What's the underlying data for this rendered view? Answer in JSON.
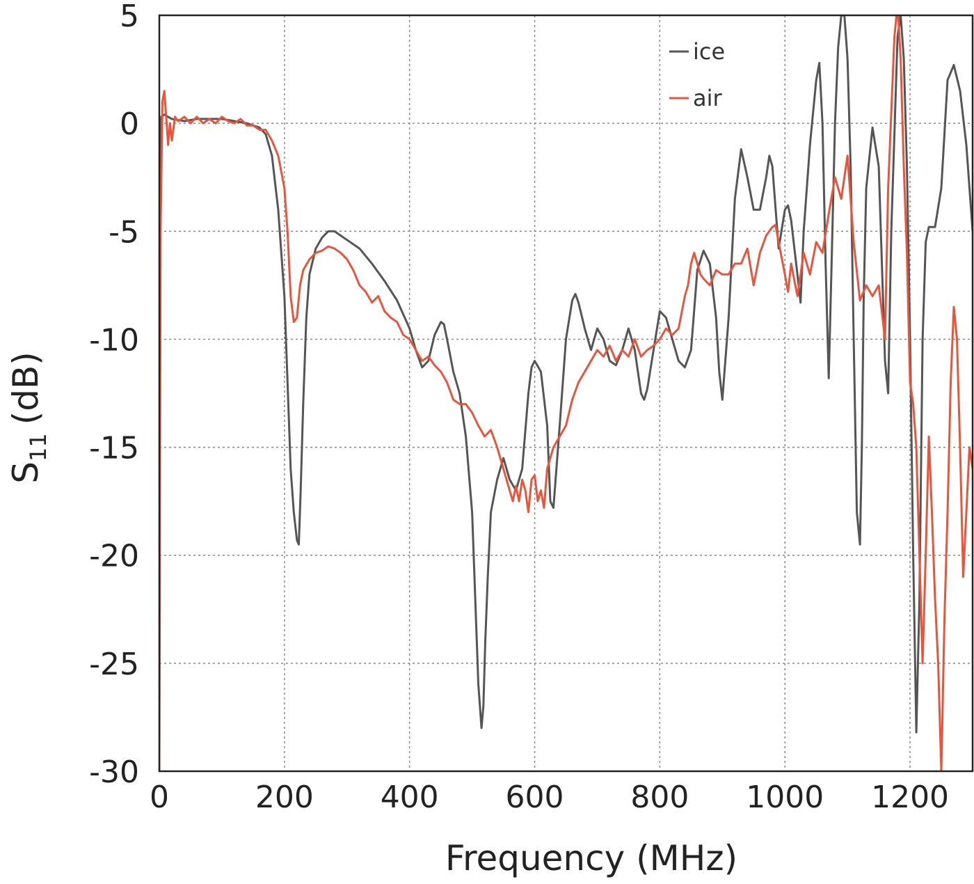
{
  "chart_data": {
    "type": "line",
    "xlabel": "Frequency (MHz)",
    "ylabel_main": "S",
    "ylabel_sub": "11",
    "ylabel_unit": "(dB)",
    "xlim": [
      0,
      1300
    ],
    "ylim": [
      -30,
      5
    ],
    "xticks": [
      0,
      200,
      400,
      600,
      800,
      1000,
      1200
    ],
    "yticks": [
      5,
      0,
      -5,
      -10,
      -15,
      -20,
      -25,
      -30
    ],
    "xtick_labels": [
      "0",
      "200",
      "400",
      "600",
      "800",
      "1000",
      "1200"
    ],
    "ytick_labels": [
      "5",
      "0",
      "-5",
      "-10",
      "-15",
      "-20",
      "-25",
      "-30"
    ],
    "grid": true,
    "legend_position": "top-right",
    "series": [
      {
        "name": "ice",
        "color": "#555555",
        "x": [
          0,
          3,
          8,
          20,
          40,
          60,
          80,
          100,
          120,
          140,
          160,
          170,
          180,
          190,
          200,
          205,
          210,
          215,
          220,
          223,
          226,
          230,
          235,
          240,
          250,
          260,
          270,
          280,
          290,
          300,
          320,
          340,
          360,
          380,
          400,
          410,
          420,
          430,
          440,
          450,
          455,
          460,
          470,
          480,
          490,
          500,
          505,
          510,
          515,
          518,
          521,
          525,
          530,
          540,
          550,
          560,
          570,
          580,
          590,
          595,
          600,
          610,
          620,
          625,
          630,
          640,
          650,
          660,
          665,
          670,
          680,
          690,
          700,
          710,
          720,
          730,
          740,
          750,
          760,
          770,
          775,
          780,
          790,
          800,
          810,
          820,
          830,
          840,
          850,
          860,
          870,
          880,
          890,
          895,
          900,
          910,
          920,
          930,
          940,
          950,
          960,
          970,
          975,
          980,
          990,
          1000,
          1005,
          1010,
          1020,
          1025,
          1030,
          1040,
          1050,
          1055,
          1060,
          1065,
          1070,
          1075,
          1080,
          1085,
          1090,
          1095,
          1100,
          1105,
          1110,
          1115,
          1120,
          1123,
          1126,
          1130,
          1140,
          1150,
          1160,
          1165,
          1170,
          1180,
          1185,
          1190,
          1195,
          1200,
          1205,
          1210,
          1215,
          1220,
          1225,
          1230,
          1240,
          1250,
          1260,
          1270,
          1280,
          1290,
          1300
        ],
        "y": [
          -10,
          0.3,
          0.4,
          0.2,
          0.1,
          0.2,
          0.2,
          0.2,
          0.1,
          0.0,
          -0.2,
          -0.5,
          -1.5,
          -4,
          -8,
          -12,
          -16,
          -18,
          -19.3,
          -19.5,
          -17,
          -13,
          -9,
          -7,
          -5.8,
          -5.3,
          -5.0,
          -5.0,
          -5.2,
          -5.4,
          -5.8,
          -6.5,
          -7.3,
          -8.2,
          -9.5,
          -10.5,
          -11.3,
          -11.0,
          -9.8,
          -9.2,
          -9.3,
          -10.0,
          -11.5,
          -12.5,
          -14.5,
          -18,
          -22,
          -26,
          -28,
          -27,
          -24,
          -21,
          -18,
          -16.5,
          -15.5,
          -16.5,
          -17,
          -16,
          -12.5,
          -11.3,
          -11.0,
          -11.5,
          -14,
          -17.5,
          -17.8,
          -14,
          -10,
          -8.2,
          -7.9,
          -8.3,
          -9.5,
          -10.5,
          -9.5,
          -10.0,
          -11.0,
          -11.2,
          -10.5,
          -9.5,
          -10.5,
          -12.5,
          -12.8,
          -12.3,
          -10.5,
          -8.7,
          -9.0,
          -10.0,
          -11.0,
          -11.3,
          -10.5,
          -6.8,
          -5.9,
          -6.5,
          -9.0,
          -11.5,
          -12.8,
          -9,
          -3.5,
          -1.2,
          -2.5,
          -4.0,
          -4.0,
          -2.5,
          -1.5,
          -2.0,
          -5.8,
          -4.0,
          -3.8,
          -4.5,
          -7.0,
          -8.3,
          -5.0,
          -1.0,
          2.0,
          2.8,
          0.0,
          -6.5,
          -11.8,
          -6.0,
          0.0,
          3.5,
          5.0,
          5.0,
          3.0,
          -2.0,
          -10.0,
          -18.0,
          -19.5,
          -15.0,
          -8.0,
          -3.0,
          -0.2,
          -2.0,
          -11.0,
          -12.5,
          -5.0,
          4.0,
          5.0,
          3.0,
          -2.0,
          -10.0,
          -20.0,
          -28.2,
          -22.0,
          -10.0,
          -5.5,
          -4.8,
          -4.8,
          -3.0,
          2.0,
          2.7,
          1.5,
          -1.0,
          -5.0
        ]
      },
      {
        "name": "air",
        "color": "#e8553c",
        "x": [
          0,
          2,
          5,
          8,
          11,
          14,
          17,
          20,
          25,
          30,
          40,
          50,
          60,
          70,
          80,
          90,
          100,
          110,
          120,
          130,
          140,
          150,
          160,
          170,
          180,
          190,
          200,
          205,
          210,
          215,
          220,
          225,
          230,
          240,
          250,
          260,
          270,
          280,
          290,
          300,
          310,
          320,
          330,
          340,
          350,
          360,
          370,
          380,
          390,
          400,
          410,
          420,
          430,
          440,
          450,
          460,
          470,
          480,
          490,
          500,
          510,
          520,
          530,
          540,
          550,
          560,
          565,
          570,
          575,
          580,
          585,
          590,
          595,
          600,
          605,
          610,
          615,
          620,
          630,
          640,
          650,
          660,
          670,
          680,
          690,
          700,
          710,
          720,
          730,
          740,
          750,
          760,
          770,
          780,
          790,
          800,
          810,
          820,
          830,
          840,
          845,
          850,
          855,
          860,
          865,
          870,
          880,
          890,
          900,
          910,
          920,
          930,
          940,
          950,
          960,
          970,
          980,
          985,
          990,
          1000,
          1005,
          1010,
          1020,
          1030,
          1040,
          1050,
          1060,
          1070,
          1080,
          1090,
          1100,
          1110,
          1120,
          1130,
          1140,
          1150,
          1160,
          1165,
          1170,
          1175,
          1180,
          1185,
          1190,
          1195,
          1200,
          1205,
          1210,
          1215,
          1220,
          1225,
          1230,
          1235,
          1240,
          1245,
          1250,
          1255,
          1260,
          1265,
          1270,
          1275,
          1280,
          1285,
          1290,
          1295,
          1300
        ],
        "y": [
          -30,
          -5,
          1.0,
          1.5,
          0.3,
          -1.0,
          0.0,
          -0.8,
          0.3,
          0.1,
          0.3,
          0.0,
          0.3,
          0.0,
          0.2,
          0.0,
          0.3,
          0.1,
          0.0,
          0.2,
          -0.1,
          -0.1,
          -0.3,
          -0.3,
          -0.8,
          -1.5,
          -3.0,
          -5.0,
          -8.0,
          -9.2,
          -9.0,
          -7.5,
          -6.8,
          -6.3,
          -6.0,
          -5.9,
          -5.7,
          -5.8,
          -6.0,
          -6.3,
          -6.8,
          -7.5,
          -7.8,
          -8.3,
          -8.0,
          -8.7,
          -9.0,
          -9.2,
          -9.8,
          -10.0,
          -10.5,
          -11.0,
          -10.8,
          -11.2,
          -11.5,
          -12.0,
          -12.8,
          -13.0,
          -13.0,
          -13.4,
          -14.0,
          -14.5,
          -14.2,
          -15.0,
          -16.0,
          -17.0,
          -17.5,
          -16.8,
          -17.5,
          -16.5,
          -17.0,
          -18.0,
          -16.5,
          -16.3,
          -17.5,
          -17.0,
          -17.8,
          -16.0,
          -15.0,
          -14.5,
          -14.0,
          -12.8,
          -12.0,
          -11.5,
          -11.0,
          -10.5,
          -10.8,
          -10.3,
          -11.0,
          -10.5,
          -10.8,
          -10.0,
          -10.8,
          -10.5,
          -10.3,
          -10.0,
          -9.5,
          -9.8,
          -9.5,
          -8.0,
          -7.5,
          -6.5,
          -6.0,
          -6.5,
          -7.0,
          -7.2,
          -7.5,
          -6.8,
          -7.0,
          -7.0,
          -6.5,
          -6.5,
          -5.8,
          -7.5,
          -6.0,
          -5.2,
          -4.8,
          -4.7,
          -5.5,
          -7.0,
          -7.8,
          -6.5,
          -8.0,
          -6.0,
          -7.0,
          -5.5,
          -6.0,
          -4.2,
          -2.5,
          -3.5,
          -1.5,
          -5.5,
          -8.2,
          -7.5,
          -8.0,
          -7.5,
          -10.0,
          -3.0,
          0.5,
          4.0,
          5.5,
          3.0,
          -2.0,
          -6.0,
          -12.0,
          -13.0,
          -15.0,
          -20.0,
          -25.0,
          -20.0,
          -14.5,
          -18.0,
          -22.0,
          -25.0,
          -30.0,
          -23.0,
          -18.0,
          -12.0,
          -8.5,
          -10.0,
          -15.0,
          -21.0,
          -18.0,
          -15.0,
          -16.0
        ]
      }
    ]
  }
}
